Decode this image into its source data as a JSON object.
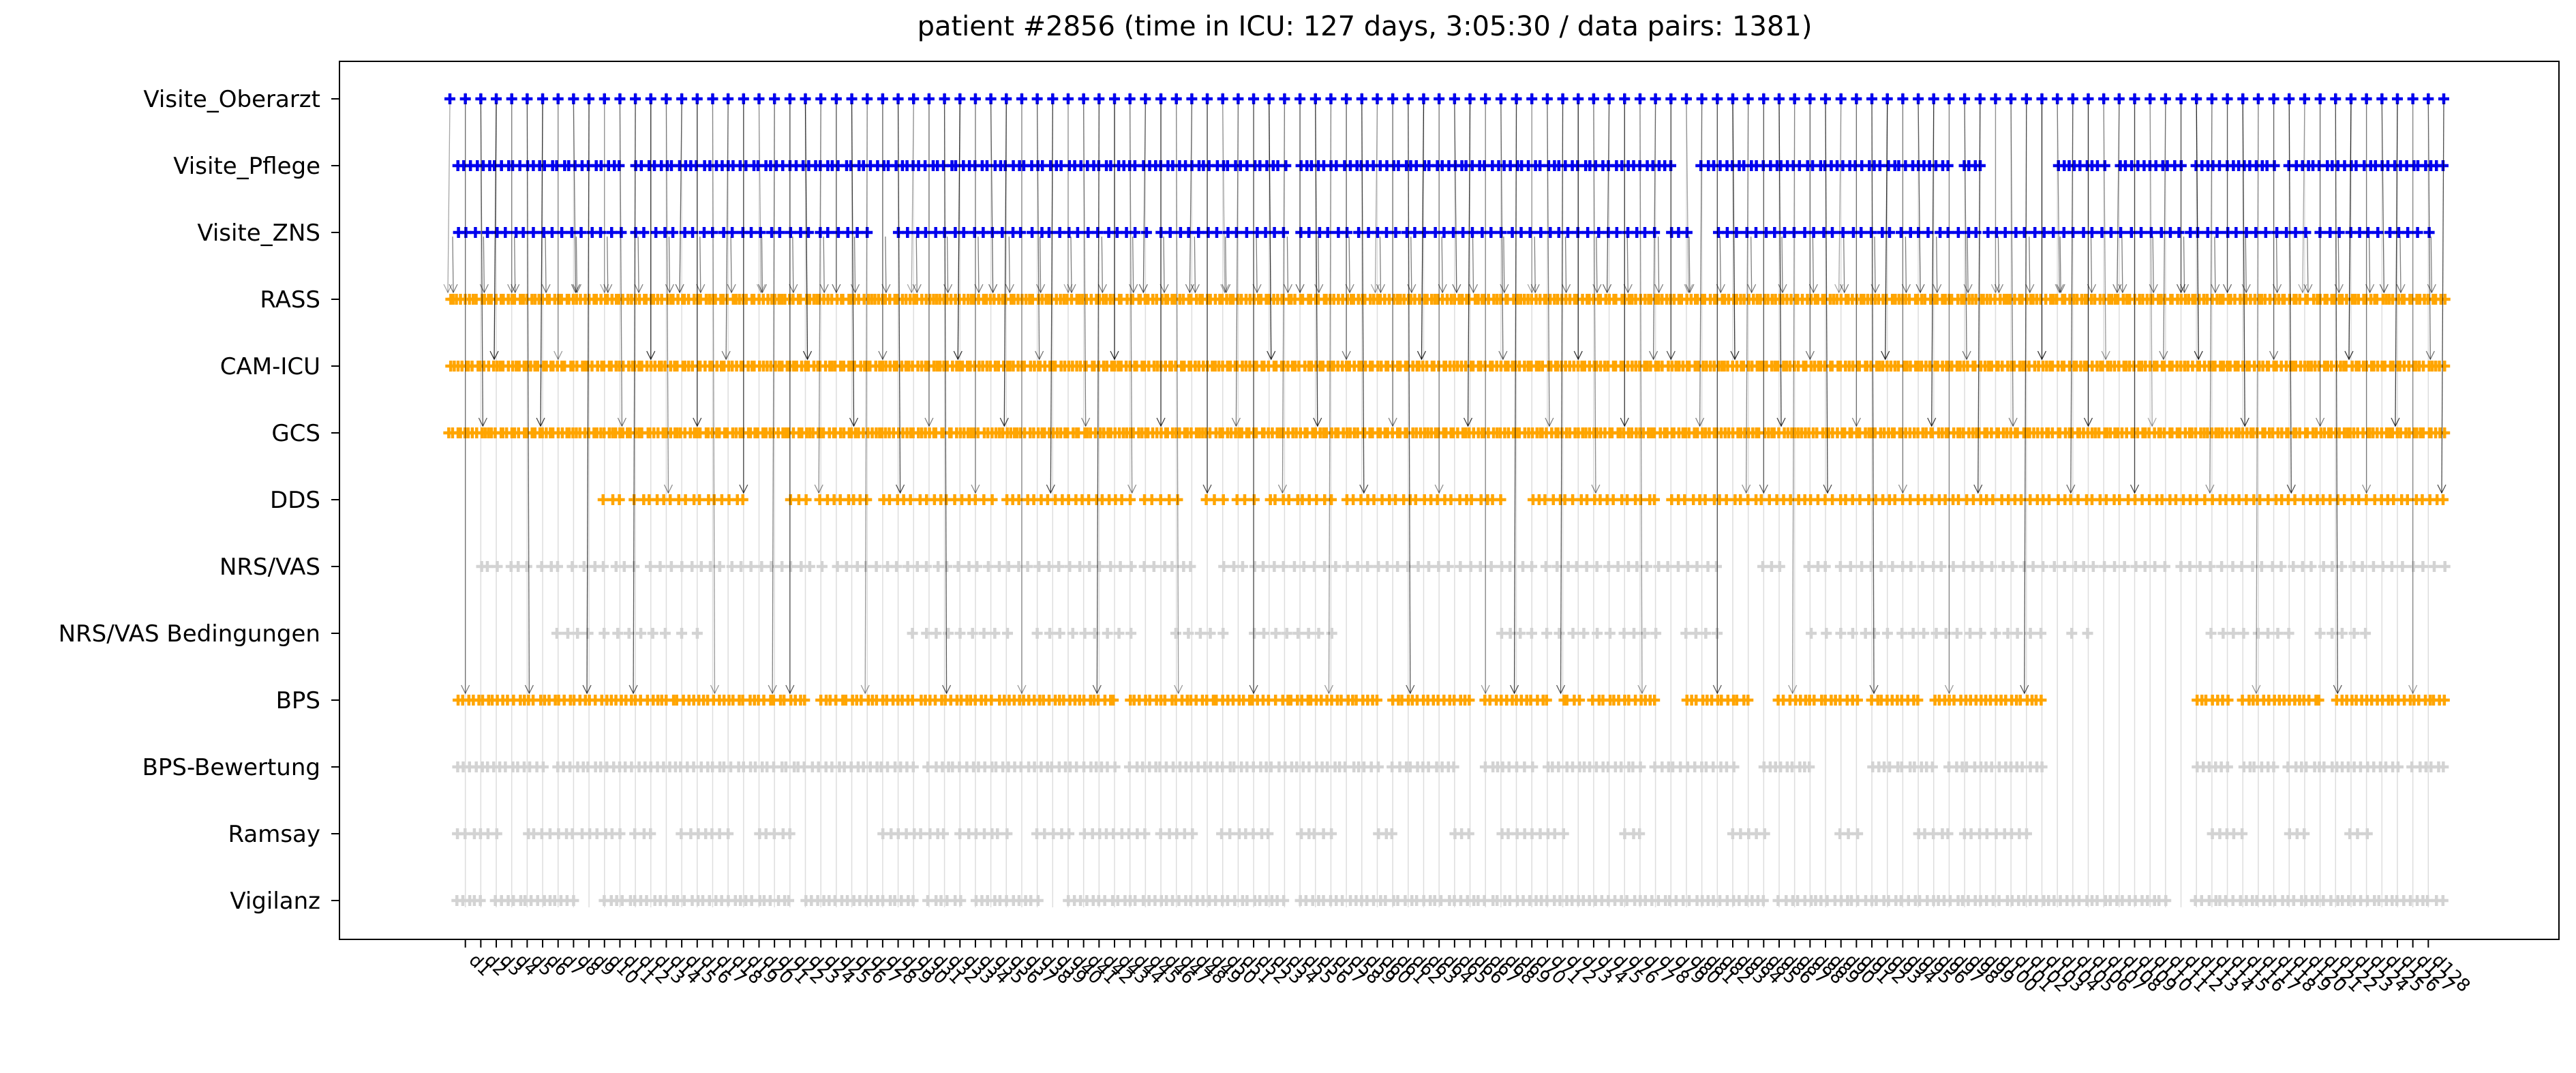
{
  "chart_data": {
    "type": "scatter",
    "title": "patient #2856 (time in ICU: 127 days, 3:05:30 / data pairs: 1381)",
    "xlabel": "",
    "ylabel": "",
    "x_tick_label_format": "d{day}",
    "xlim": [
      0,
      129
    ],
    "x_ticks": [
      1,
      2,
      3,
      4,
      5,
      6,
      7,
      8,
      9,
      10,
      11,
      12,
      13,
      14,
      15,
      16,
      17,
      18,
      19,
      20,
      21,
      22,
      23,
      24,
      25,
      26,
      27,
      28,
      29,
      30,
      31,
      32,
      33,
      34,
      35,
      36,
      37,
      38,
      39,
      40,
      41,
      42,
      43,
      44,
      45,
      46,
      47,
      48,
      49,
      50,
      51,
      52,
      53,
      54,
      55,
      56,
      57,
      58,
      59,
      60,
      61,
      62,
      63,
      64,
      65,
      66,
      67,
      68,
      69,
      70,
      71,
      72,
      73,
      74,
      75,
      76,
      77,
      78,
      79,
      80,
      81,
      82,
      83,
      84,
      85,
      86,
      87,
      88,
      89,
      90,
      91,
      92,
      93,
      94,
      95,
      96,
      97,
      98,
      99,
      100,
      101,
      102,
      103,
      104,
      105,
      106,
      107,
      108,
      109,
      110,
      111,
      112,
      113,
      114,
      115,
      116,
      117,
      118,
      119,
      120,
      121,
      122,
      123,
      124,
      125,
      126,
      127,
      128
    ],
    "grid": "vertical lines at day ticks",
    "categories": [
      "Visite_Oberarzt",
      "Visite_Pflege",
      "Visite_ZNS",
      "RASS",
      "CAM-ICU",
      "GCS",
      "DDS",
      "NRS/VAS",
      "NRS/VAS Bedingungen",
      "BPS",
      "BPS-Bewertung",
      "Ramsay",
      "Vigilanz"
    ],
    "colors": {
      "visit": "#0000ee",
      "paired": "#ffa500",
      "unpaired": "#d3d3d3",
      "arrow": "#000000",
      "grid": "#dddddd"
    },
    "series": [
      {
        "category": "Visite_Oberarzt",
        "color": "visit",
        "segments": [
          [
            0,
            129
          ]
        ],
        "density": 1.0
      },
      {
        "category": "Visite_Pflege",
        "color": "visit",
        "segments": [
          [
            0.5,
            11
          ],
          [
            12,
            54
          ],
          [
            55,
            79
          ],
          [
            81,
            97
          ],
          [
            98,
            99
          ],
          [
            104,
            107
          ],
          [
            108,
            112
          ],
          [
            113,
            118
          ],
          [
            119,
            129
          ]
        ],
        "density": 2.5
      },
      {
        "category": "Visite_ZNS",
        "color": "visit",
        "segments": [
          [
            0.5,
            11
          ],
          [
            12,
            27
          ],
          [
            29,
            45
          ],
          [
            46,
            54
          ],
          [
            55,
            78
          ],
          [
            79,
            80
          ],
          [
            82,
            120
          ],
          [
            121,
            128
          ]
        ],
        "density": 1.6
      },
      {
        "category": "RASS",
        "color": "paired",
        "segments": [
          [
            0,
            129
          ]
        ],
        "density": 4.0
      },
      {
        "category": "CAM-ICU",
        "color": "paired",
        "segments": [
          [
            0,
            129
          ]
        ],
        "density": 4.0
      },
      {
        "category": "GCS",
        "color": "paired",
        "segments": [
          [
            0,
            129
          ]
        ],
        "density": 4.0
      },
      {
        "category": "DDS",
        "color": "paired",
        "segments": [
          [
            10,
            11
          ],
          [
            12,
            19
          ],
          [
            22,
            23
          ],
          [
            24,
            27
          ],
          [
            28,
            35
          ],
          [
            36,
            44
          ],
          [
            45,
            47
          ],
          [
            49,
            50
          ],
          [
            51,
            52
          ],
          [
            53,
            57
          ],
          [
            58,
            68
          ],
          [
            70,
            78
          ],
          [
            79,
            129
          ]
        ],
        "density": 2.2
      },
      {
        "category": "NRS/VAS",
        "color": "unpaired",
        "segments": [
          [
            2,
            3
          ],
          [
            4,
            5
          ],
          [
            6,
            7
          ],
          [
            8,
            12
          ],
          [
            13,
            24
          ],
          [
            25,
            44
          ],
          [
            45,
            48
          ],
          [
            50,
            70
          ],
          [
            71,
            82
          ],
          [
            85,
            86
          ],
          [
            88,
            89
          ],
          [
            90,
            111
          ],
          [
            112,
            129
          ]
        ],
        "density": 1.5
      },
      {
        "category": "NRS/VAS Bedingungen",
        "color": "unpaired",
        "segments": [
          [
            7,
            9
          ],
          [
            10,
            14
          ],
          [
            15,
            16
          ],
          [
            30,
            36
          ],
          [
            38,
            44
          ],
          [
            47,
            50
          ],
          [
            52,
            57
          ],
          [
            68,
            70
          ],
          [
            71,
            75
          ],
          [
            76,
            78
          ],
          [
            80,
            82
          ],
          [
            88,
            89
          ],
          [
            90,
            93
          ],
          [
            94,
            99
          ],
          [
            100,
            103
          ],
          [
            105,
            106
          ],
          [
            114,
            116
          ],
          [
            117,
            119
          ],
          [
            121,
            124
          ]
        ],
        "density": 1.3
      },
      {
        "category": "BPS",
        "color": "paired",
        "segments": [
          [
            0.5,
            23
          ],
          [
            24,
            30
          ],
          [
            30.5,
            35
          ],
          [
            35.5,
            43
          ],
          [
            44,
            53
          ],
          [
            53.5,
            60
          ],
          [
            61,
            66
          ],
          [
            67,
            71
          ],
          [
            72,
            73
          ],
          [
            74,
            78
          ],
          [
            80,
            84
          ],
          [
            86,
            91
          ],
          [
            92,
            95
          ],
          [
            96,
            103
          ],
          [
            113,
            115
          ],
          [
            116,
            121
          ],
          [
            122,
            126
          ],
          [
            126.5,
            129
          ]
        ],
        "density": 3.0
      },
      {
        "category": "BPS-Bewertung",
        "color": "unpaired",
        "segments": [
          [
            0.5,
            6
          ],
          [
            7,
            23
          ],
          [
            23.5,
            30
          ],
          [
            31,
            43
          ],
          [
            44,
            60
          ],
          [
            61,
            65
          ],
          [
            67,
            69
          ],
          [
            69.5,
            70
          ],
          [
            71,
            77
          ],
          [
            78,
            80
          ],
          [
            80.5,
            83
          ],
          [
            85,
            88
          ],
          [
            92,
            96
          ],
          [
            97,
            103
          ],
          [
            113,
            115
          ],
          [
            116,
            118
          ],
          [
            119,
            126
          ],
          [
            127,
            129
          ]
        ],
        "density": 2.5
      },
      {
        "category": "Ramsay",
        "color": "unpaired",
        "segments": [
          [
            0.5,
            1.5
          ],
          [
            2,
            3
          ],
          [
            5,
            11
          ],
          [
            12,
            13
          ],
          [
            15,
            18
          ],
          [
            20,
            22
          ],
          [
            28,
            30
          ],
          [
            30.5,
            32
          ],
          [
            33,
            34
          ],
          [
            34.5,
            36
          ],
          [
            38,
            40
          ],
          [
            41,
            45
          ],
          [
            46,
            48
          ],
          [
            50,
            53
          ],
          [
            55,
            57
          ],
          [
            60,
            61
          ],
          [
            65,
            66
          ],
          [
            68,
            72
          ],
          [
            76,
            77
          ],
          [
            83,
            85
          ],
          [
            90,
            91
          ],
          [
            95,
            97
          ],
          [
            98,
            99
          ],
          [
            99.5,
            102
          ],
          [
            114,
            116
          ],
          [
            119,
            120
          ],
          [
            123,
            124
          ]
        ],
        "density": 2.0
      },
      {
        "category": "Vigilanz",
        "color": "unpaired",
        "segments": [
          [
            0.5,
            2
          ],
          [
            3,
            8
          ],
          [
            10,
            22
          ],
          [
            23,
            30
          ],
          [
            31,
            33
          ],
          [
            34,
            38
          ],
          [
            40,
            54
          ],
          [
            55,
            85
          ],
          [
            86,
            111
          ],
          [
            113,
            128
          ],
          [
            128.5,
            129
          ]
        ],
        "density": 2.5
      }
    ]
  }
}
